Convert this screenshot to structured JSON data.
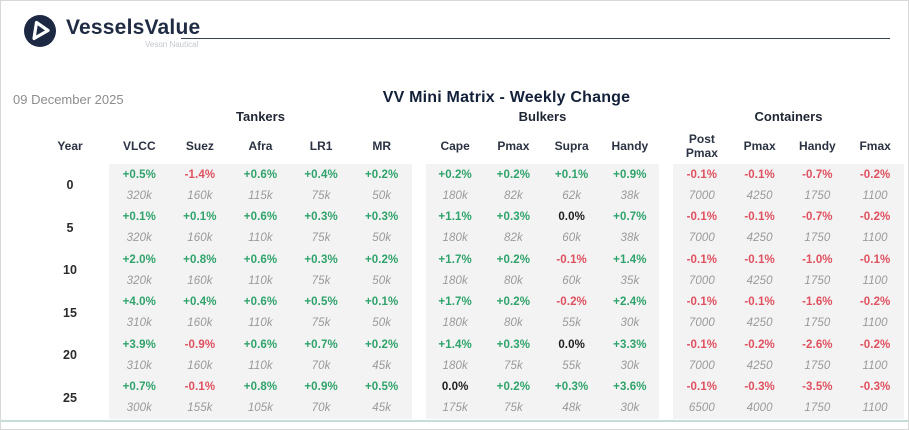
{
  "brand": {
    "name": "VesselsValue",
    "subtitle": "Veson Nautical"
  },
  "date": "09 December 2025",
  "title": "VV Mini Matrix - Weekly Change",
  "colors": {
    "green": "#2fa36b",
    "red": "#e0505f",
    "panel": "#f3f3f3",
    "value_gray": "#9a9a9a",
    "navy": "#1d2942",
    "bottom_line": "#c6dcd9"
  },
  "table": {
    "year_label": "Year",
    "groups": [
      {
        "name": "Tankers",
        "columns": [
          "VLCC",
          "Suez",
          "Afra",
          "LR1",
          "MR"
        ]
      },
      {
        "name": "Bulkers",
        "columns": [
          "Cape",
          "Pmax",
          "Supra",
          "Handy"
        ]
      },
      {
        "name": "Containers",
        "columns": [
          "Post Pmax",
          "Pmax",
          "Handy",
          "Fmax"
        ]
      }
    ],
    "rows": [
      {
        "year": "0",
        "cells": [
          [
            [
              "+0.5%",
              "320k"
            ],
            [
              "-1.4%",
              "160k"
            ],
            [
              "+0.6%",
              "115k"
            ],
            [
              "+0.4%",
              "75k"
            ],
            [
              "+0.2%",
              "50k"
            ]
          ],
          [
            [
              "+0.2%",
              "180k"
            ],
            [
              "+0.2%",
              "82k"
            ],
            [
              "+0.1%",
              "62k"
            ],
            [
              "+0.9%",
              "38k"
            ]
          ],
          [
            [
              "-0.1%",
              "7000"
            ],
            [
              "-0.1%",
              "4250"
            ],
            [
              "-0.7%",
              "1750"
            ],
            [
              "-0.2%",
              "1100"
            ]
          ]
        ]
      },
      {
        "year": "5",
        "cells": [
          [
            [
              "+0.1%",
              "320k"
            ],
            [
              "+0.1%",
              "160k"
            ],
            [
              "+0.6%",
              "110k"
            ],
            [
              "+0.3%",
              "75k"
            ],
            [
              "+0.3%",
              "50k"
            ]
          ],
          [
            [
              "+1.1%",
              "180k"
            ],
            [
              "+0.3%",
              "82k"
            ],
            [
              "0.0%",
              "60k"
            ],
            [
              "+0.7%",
              "38k"
            ]
          ],
          [
            [
              "-0.1%",
              "7000"
            ],
            [
              "-0.1%",
              "4250"
            ],
            [
              "-0.7%",
              "1750"
            ],
            [
              "-0.2%",
              "1100"
            ]
          ]
        ]
      },
      {
        "year": "10",
        "cells": [
          [
            [
              "+2.0%",
              "320k"
            ],
            [
              "+0.8%",
              "160k"
            ],
            [
              "+0.6%",
              "110k"
            ],
            [
              "+0.3%",
              "75k"
            ],
            [
              "+0.2%",
              "50k"
            ]
          ],
          [
            [
              "+1.7%",
              "180k"
            ],
            [
              "+0.2%",
              "80k"
            ],
            [
              "-0.1%",
              "60k"
            ],
            [
              "+1.4%",
              "35k"
            ]
          ],
          [
            [
              "-0.1%",
              "7000"
            ],
            [
              "-0.1%",
              "4250"
            ],
            [
              "-1.0%",
              "1750"
            ],
            [
              "-0.1%",
              "1100"
            ]
          ]
        ]
      },
      {
        "year": "15",
        "cells": [
          [
            [
              "+4.0%",
              "310k"
            ],
            [
              "+0.4%",
              "160k"
            ],
            [
              "+0.6%",
              "110k"
            ],
            [
              "+0.5%",
              "75k"
            ],
            [
              "+0.1%",
              "50k"
            ]
          ],
          [
            [
              "+1.7%",
              "180k"
            ],
            [
              "+0.2%",
              "80k"
            ],
            [
              "-0.2%",
              "55k"
            ],
            [
              "+2.4%",
              "30k"
            ]
          ],
          [
            [
              "-0.1%",
              "7000"
            ],
            [
              "-0.1%",
              "4250"
            ],
            [
              "-1.6%",
              "1750"
            ],
            [
              "-0.2%",
              "1100"
            ]
          ]
        ]
      },
      {
        "year": "20",
        "cells": [
          [
            [
              "+3.9%",
              "310k"
            ],
            [
              "-0.9%",
              "160k"
            ],
            [
              "+0.6%",
              "110k"
            ],
            [
              "+0.7%",
              "70k"
            ],
            [
              "+0.2%",
              "45k"
            ]
          ],
          [
            [
              "+1.4%",
              "180k"
            ],
            [
              "+0.3%",
              "75k"
            ],
            [
              "0.0%",
              "55k"
            ],
            [
              "+3.3%",
              "30k"
            ]
          ],
          [
            [
              "-0.1%",
              "7000"
            ],
            [
              "-0.2%",
              "4250"
            ],
            [
              "-2.6%",
              "1750"
            ],
            [
              "-0.2%",
              "1100"
            ]
          ]
        ]
      },
      {
        "year": "25",
        "cells": [
          [
            [
              "+0.7%",
              "300k"
            ],
            [
              "-0.1%",
              "155k"
            ],
            [
              "+0.8%",
              "105k"
            ],
            [
              "+0.9%",
              "70k"
            ],
            [
              "+0.5%",
              "45k"
            ]
          ],
          [
            [
              "0.0%",
              "175k"
            ],
            [
              "+0.2%",
              "75k"
            ],
            [
              "+0.3%",
              "48k"
            ],
            [
              "+3.6%",
              "30k"
            ]
          ],
          [
            [
              "-0.1%",
              "6500"
            ],
            [
              "-0.3%",
              "4000"
            ],
            [
              "-3.5%",
              "1750"
            ],
            [
              "-0.3%",
              "1100"
            ]
          ]
        ]
      }
    ]
  }
}
